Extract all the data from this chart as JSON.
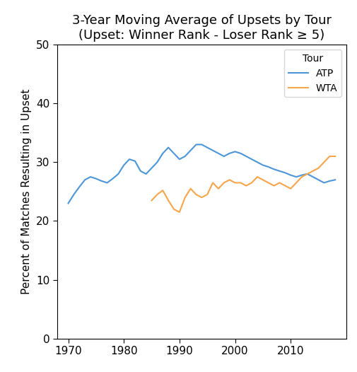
{
  "title_line1": "3-Year Moving Average of Upsets by Tour",
  "title_line2": "(Upset: Winner Rank - Loser Rank ≥ 5)",
  "ylabel": "Percent of Matches Resulting in Upset",
  "xlabel": "",
  "xlim": [
    1968,
    2020
  ],
  "ylim": [
    0,
    50
  ],
  "yticks": [
    0,
    10,
    20,
    30,
    40,
    50
  ],
  "xticks": [
    1970,
    1980,
    1990,
    2000,
    2010
  ],
  "atp_color": "#4C96D7",
  "wta_color": "#F5A54A",
  "atp_data": {
    "years": [
      1970,
      1971,
      1972,
      1973,
      1974,
      1975,
      1976,
      1977,
      1978,
      1979,
      1980,
      1981,
      1982,
      1983,
      1984,
      1985,
      1986,
      1987,
      1988,
      1989,
      1990,
      1991,
      1992,
      1993,
      1994,
      1995,
      1996,
      1997,
      1998,
      1999,
      2000,
      2001,
      2002,
      2003,
      2004,
      2005,
      2006,
      2007,
      2008,
      2009,
      2010,
      2011,
      2012,
      2013,
      2014,
      2015,
      2016,
      2017,
      2018
    ],
    "values": [
      23.0,
      24.5,
      25.8,
      27.0,
      27.5,
      27.2,
      26.8,
      26.5,
      27.2,
      28.0,
      29.5,
      30.5,
      30.2,
      28.5,
      28.0,
      29.0,
      30.0,
      31.5,
      32.5,
      31.5,
      30.5,
      31.0,
      32.0,
      33.0,
      33.0,
      32.5,
      32.0,
      31.5,
      31.0,
      31.5,
      31.8,
      31.5,
      31.0,
      30.5,
      30.0,
      29.5,
      29.2,
      28.8,
      28.5,
      28.2,
      27.8,
      27.5,
      27.8,
      28.0,
      27.5,
      27.0,
      26.5,
      26.8,
      27.0
    ]
  },
  "wta_data": {
    "years": [
      1985,
      1986,
      1987,
      1988,
      1989,
      1990,
      1991,
      1992,
      1993,
      1994,
      1995,
      1996,
      1997,
      1998,
      1999,
      2000,
      2001,
      2002,
      2003,
      2004,
      2005,
      2006,
      2007,
      2008,
      2009,
      2010,
      2011,
      2012,
      2013,
      2014,
      2015,
      2016,
      2017,
      2018
    ],
    "values": [
      23.5,
      24.5,
      25.2,
      23.5,
      22.0,
      21.5,
      24.0,
      25.5,
      24.5,
      24.0,
      24.5,
      26.5,
      25.5,
      26.5,
      27.0,
      26.5,
      26.5,
      26.0,
      26.5,
      27.5,
      27.0,
      26.5,
      26.0,
      26.5,
      26.0,
      25.5,
      26.5,
      27.5,
      28.0,
      28.5,
      29.0,
      30.0,
      31.0,
      31.0
    ]
  },
  "legend_title": "Tour",
  "legend_labels": [
    "ATP",
    "WTA"
  ],
  "background_color": "#ffffff",
  "linewidth": 1.5,
  "title_fontsize": 13,
  "label_fontsize": 11,
  "tick_fontsize": 11,
  "legend_fontsize": 10
}
